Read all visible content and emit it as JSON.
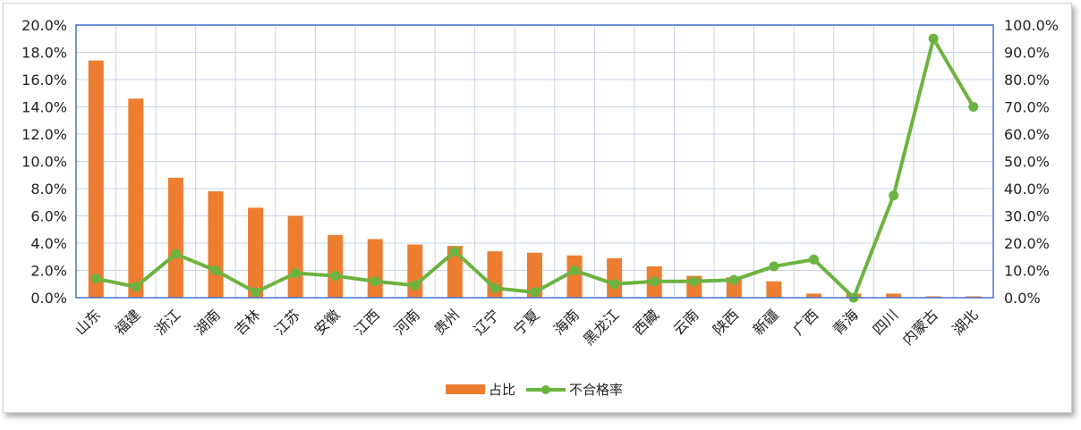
{
  "chart_data": {
    "type": "bar",
    "categories": [
      "山东",
      "福建",
      "浙江",
      "湖南",
      "吉林",
      "江苏",
      "安徽",
      "江西",
      "河南",
      "贵州",
      "辽宁",
      "宁夏",
      "海南",
      "黑龙江",
      "西藏",
      "云南",
      "陕西",
      "新疆",
      "广西",
      "青海",
      "四川",
      "内蒙古",
      "湖北"
    ],
    "series": [
      {
        "name": "占比",
        "type": "bar",
        "axis": "left",
        "color": "#ed7d31",
        "values": [
          17.4,
          14.6,
          8.8,
          7.8,
          6.6,
          6.0,
          4.6,
          4.3,
          3.9,
          3.8,
          3.4,
          3.3,
          3.1,
          2.9,
          2.3,
          1.6,
          1.5,
          1.2,
          0.3,
          0.3,
          0.3,
          0.1,
          0.1
        ]
      },
      {
        "name": "不合格率",
        "type": "line",
        "axis": "right",
        "color": "#6cb33f",
        "values": [
          7.0,
          4.0,
          16.0,
          10.0,
          2.0,
          9.0,
          8.0,
          6.0,
          4.5,
          17.0,
          3.5,
          2.0,
          10.0,
          5.0,
          6.0,
          6.0,
          6.5,
          11.5,
          14.0,
          0.0,
          37.5,
          95.0,
          70.0
        ]
      }
    ],
    "y_left": {
      "ylim": [
        0,
        20
      ],
      "ticks": [
        "0.0%",
        "2.0%",
        "4.0%",
        "6.0%",
        "8.0%",
        "10.0%",
        "12.0%",
        "14.0%",
        "16.0%",
        "18.0%",
        "20.0%"
      ]
    },
    "y_right": {
      "ylim": [
        0,
        100
      ],
      "ticks": [
        "0.0%",
        "10.0%",
        "20.0%",
        "30.0%",
        "40.0%",
        "50.0%",
        "60.0%",
        "70.0%",
        "80.0%",
        "90.0%",
        "100.0%"
      ]
    },
    "grid": true,
    "legend_position": "bottom-center",
    "legend": [
      "占比",
      "不合格率"
    ]
  }
}
